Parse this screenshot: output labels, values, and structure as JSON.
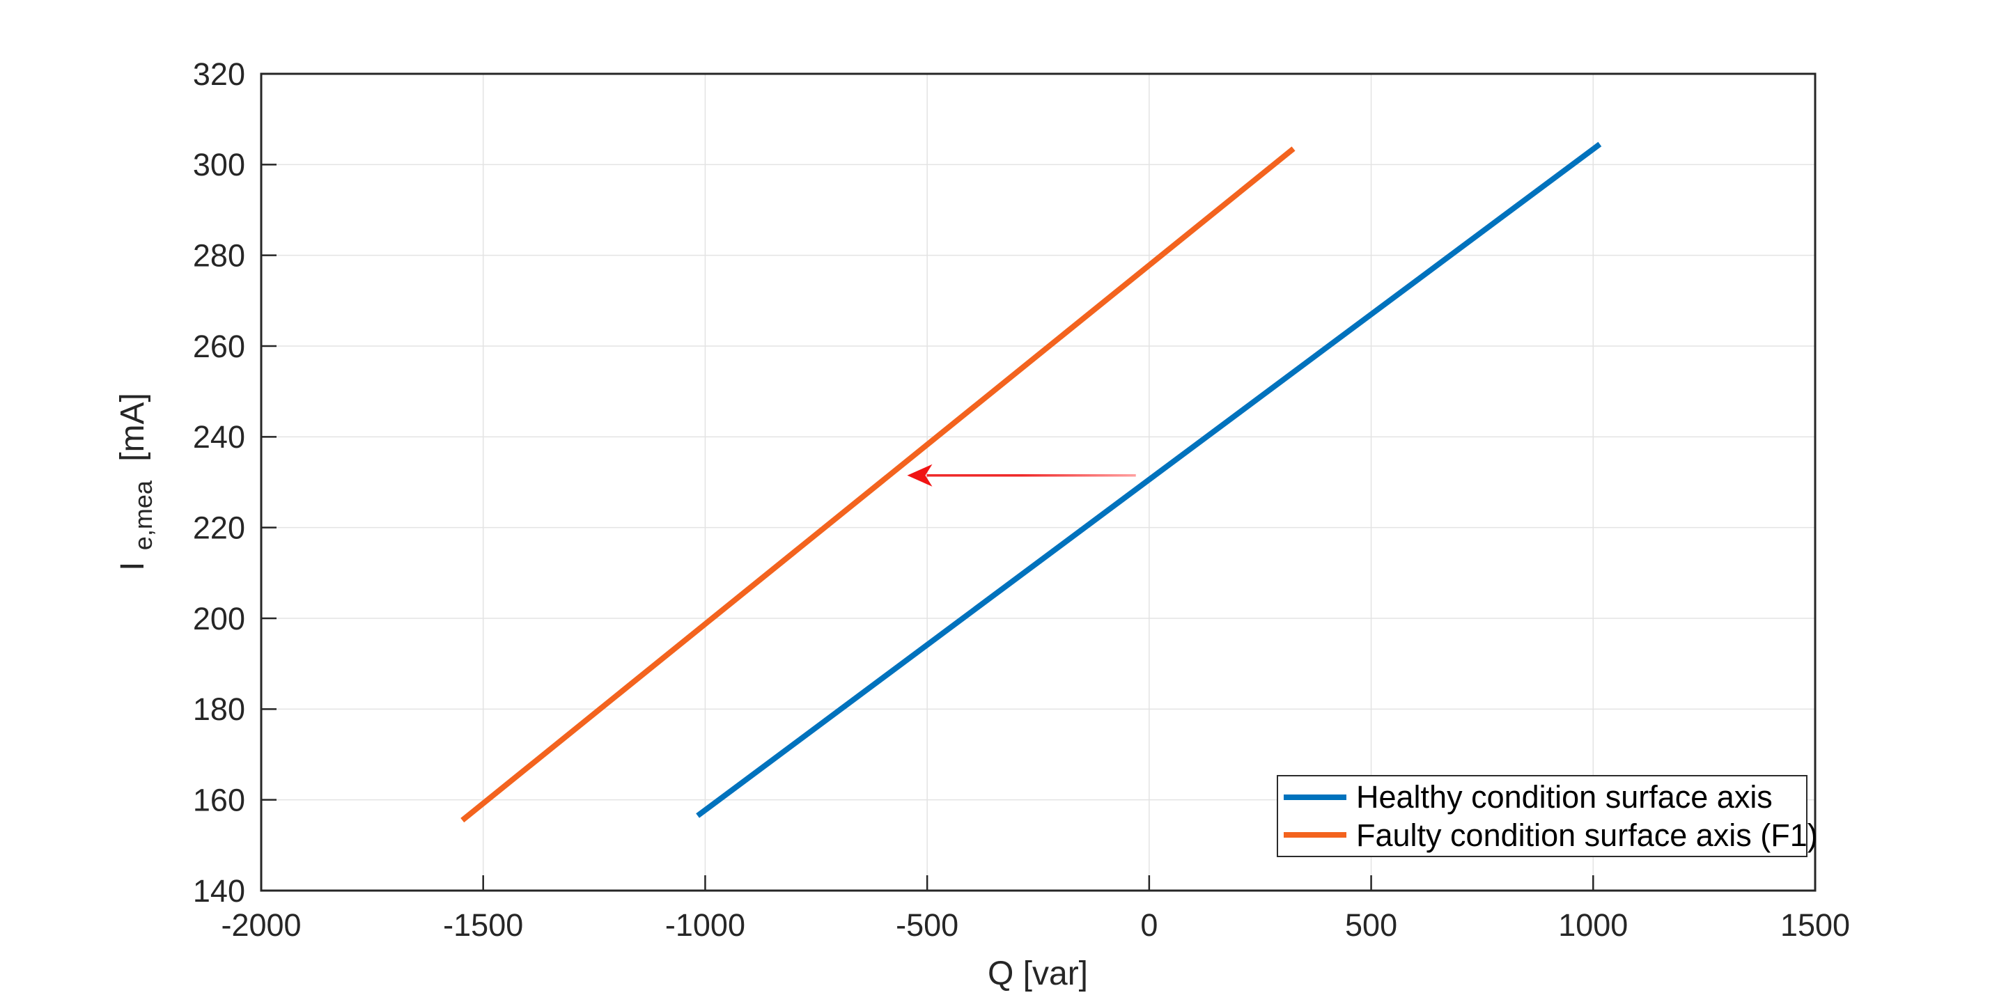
{
  "figure": {
    "background": "#ffffff"
  },
  "chart_data": {
    "type": "line",
    "title": "",
    "xlabel": "Q [var]",
    "ylabel": "I_e,mea [mA]",
    "ylabel_parts": {
      "base": "I",
      "sub": "e,mea",
      "unit": "[mA]"
    },
    "xlim": [
      -2000,
      1500
    ],
    "ylim": [
      140,
      320
    ],
    "x_ticks": [
      -2000,
      -1500,
      -1000,
      -500,
      0,
      500,
      1000,
      1500
    ],
    "y_ticks": [
      140,
      160,
      180,
      200,
      220,
      240,
      260,
      280,
      300,
      320
    ],
    "grid": true,
    "axis_color": "#262626",
    "grid_color": "#e3e3e3",
    "legend_position": "bottom-right",
    "series": [
      {
        "name": "Healthy condition surface axis",
        "color": "#0072BD",
        "x": [
          -1017,
          1015
        ],
        "y": [
          156.5,
          304.5
        ]
      },
      {
        "name": "Faulty condition surface axis (F1)",
        "color": "#F3631E",
        "x": [
          -1547,
          325
        ],
        "y": [
          155.5,
          303.5
        ]
      }
    ],
    "annotation": {
      "type": "arrow",
      "direction": "left",
      "head_color": "#f01414",
      "line_color_start": "#ef2929",
      "line_color_end": "#ffa0a0",
      "tip": {
        "x": -545,
        "y": 231.5
      },
      "tail": {
        "x": -30,
        "y": 231.5
      }
    }
  }
}
